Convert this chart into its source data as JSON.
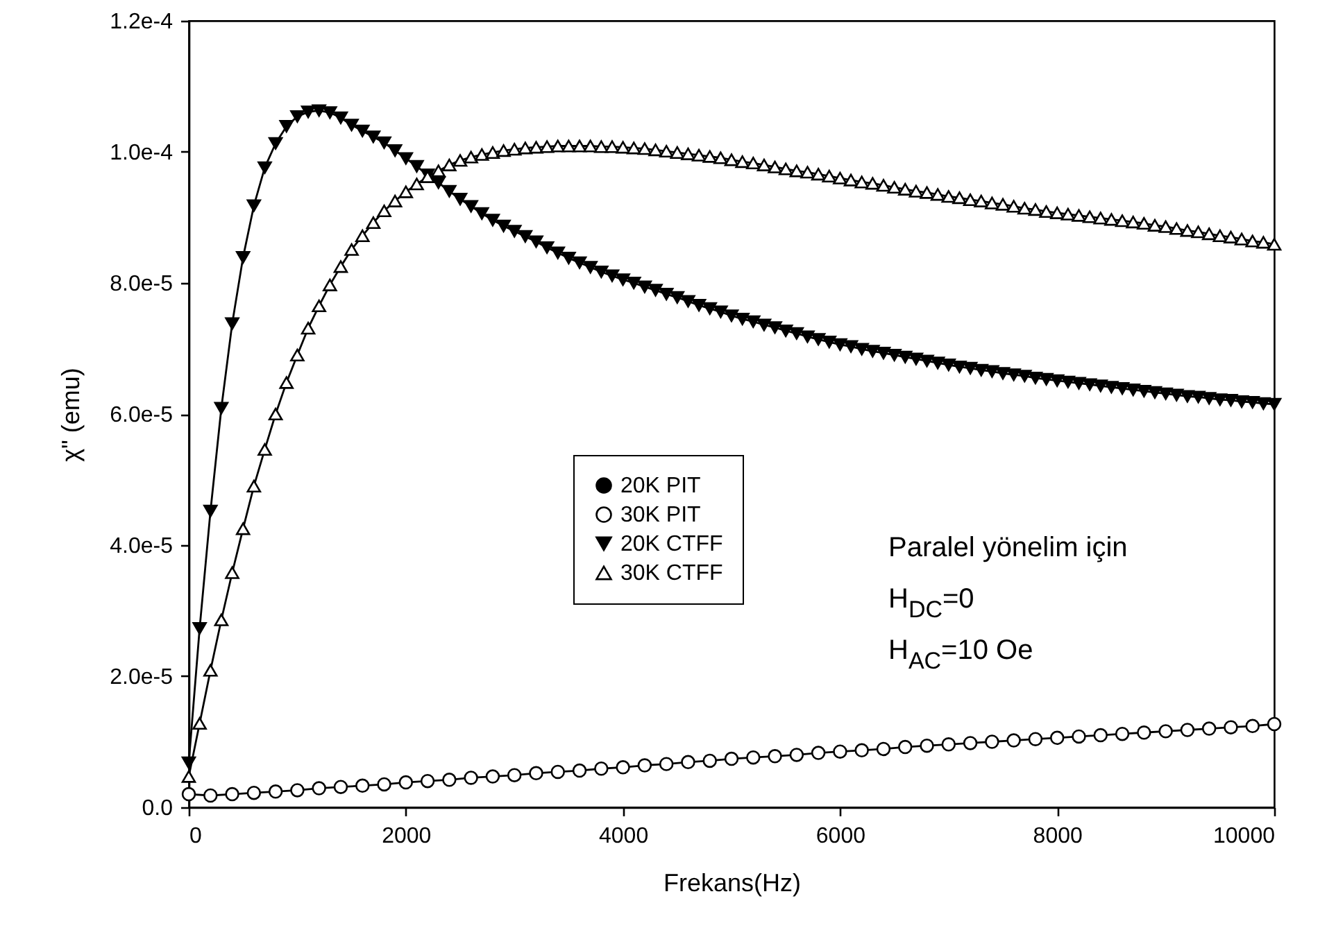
{
  "chart_data": {
    "type": "line",
    "xlabel": "Frekans(Hz)",
    "ylabel": "χ\" (emu)",
    "xlim": [
      0,
      10000
    ],
    "xticks": [
      0,
      2000,
      4000,
      6000,
      8000,
      10000
    ],
    "grid": false,
    "ylim": [
      0,
      0.00012
    ],
    "yticks": [
      {
        "value": 0,
        "label": "0.0"
      },
      {
        "value": 2e-05,
        "label": "2.0e-5"
      },
      {
        "value": 4e-05,
        "label": "4.0e-5"
      },
      {
        "value": 6e-05,
        "label": "6.0e-5"
      },
      {
        "value": 8e-05,
        "label": "8.0e-5"
      },
      {
        "value": 0.0001,
        "label": "1.0e-4"
      },
      {
        "value": 0.00012,
        "label": "1.2e-4"
      }
    ],
    "legend": "center left",
    "line_style": "solid",
    "annotations": [
      "Paralel yönelim için",
      "H$_{DC}$=0",
      "H$_{AC}$=10 Oe"
    ],
    "series": [
      {
        "name": "20K PIT",
        "color": "#000000",
        "marker": "circle"
      },
      {
        "name": "30K PIT",
        "color": "#ffffff",
        "marker": "circle",
        "x": [
          0,
          200,
          400,
          600,
          800,
          1000,
          1200,
          1400,
          1600,
          1800,
          2000,
          2200,
          2400,
          2600,
          2800,
          3000,
          3200,
          3400,
          3600,
          3800,
          4000,
          4200,
          4400,
          4600,
          4800,
          5000,
          5200,
          5400,
          5600,
          5800,
          6000,
          6200,
          6400,
          6600,
          6800,
          7000,
          7200,
          7400,
          7600,
          7800,
          8000,
          8200,
          8400,
          8600,
          8800,
          9000,
          9200,
          9400,
          9600,
          9800,
          10000
        ],
        "values": [
          2e-06,
          1.8e-06,
          2e-06,
          2.2e-06,
          2.4e-06,
          2.6e-06,
          2.9e-06,
          3.1e-06,
          3.3e-06,
          3.5e-06,
          3.8e-06,
          4e-06,
          4.2e-06,
          4.5e-06,
          4.7e-06,
          4.9e-06,
          5.2e-06,
          5.4e-06,
          5.6e-06,
          5.9e-06,
          6.1e-06,
          6.4e-06,
          6.6e-06,
          6.9e-06,
          7.1e-06,
          7.4e-06,
          7.6e-06,
          7.8e-06,
          8e-06,
          8.3e-06,
          8.5e-06,
          8.7e-06,
          8.9e-06,
          9.2e-06,
          9.4e-06,
          9.6e-06,
          9.8e-06,
          1e-05,
          1.02e-05,
          1.04e-05,
          1.06e-05,
          1.08e-05,
          1.1e-05,
          1.12e-05,
          1.14e-05,
          1.16e-05,
          1.18e-05,
          1.2e-05,
          1.22e-05,
          1.24e-05,
          1.27e-05
        ]
      },
      {
        "name": "20K CTFF",
        "color": "#000000",
        "marker": "triangle-down",
        "x": [
          0,
          100,
          200,
          300,
          400,
          500,
          600,
          700,
          800,
          900,
          1000,
          1100,
          1200,
          1300,
          1400,
          1500,
          1600,
          1700,
          1800,
          1900,
          2000,
          2100,
          2200,
          2300,
          2400,
          2500,
          2600,
          2700,
          2800,
          2900,
          3000,
          3100,
          3200,
          3300,
          3400,
          3500,
          3600,
          3700,
          3800,
          3900,
          4000,
          4100,
          4200,
          4300,
          4400,
          4500,
          4600,
          4700,
          4800,
          4900,
          5000,
          5100,
          5200,
          5300,
          5400,
          5500,
          5600,
          5700,
          5800,
          5900,
          6000,
          6100,
          6200,
          6300,
          6400,
          6500,
          6600,
          6700,
          6800,
          6900,
          7000,
          7100,
          7200,
          7300,
          7400,
          7500,
          7600,
          7700,
          7800,
          7900,
          8000,
          8100,
          8200,
          8300,
          8400,
          8500,
          8600,
          8700,
          8800,
          8900,
          9000,
          9100,
          9200,
          9300,
          9400,
          9500,
          9600,
          9700,
          9800,
          9900,
          10000
        ],
        "values": [
          6.8e-06,
          2.73e-05,
          4.52e-05,
          6.09e-05,
          7.38e-05,
          8.39e-05,
          9.18e-05,
          9.76e-05,
          0.0001013,
          0.0001039,
          0.0001054,
          0.0001061,
          0.0001063,
          0.000106,
          0.0001052,
          0.0001041,
          0.0001032,
          0.0001023,
          0.0001014,
          0.0001002,
          9.9e-05,
          9.78e-05,
          9.65e-05,
          9.53e-05,
          9.4e-05,
          9.28e-05,
          9.17e-05,
          9.06e-05,
          8.96e-05,
          8.87e-05,
          8.79e-05,
          8.71e-05,
          8.63e-05,
          8.54e-05,
          8.46e-05,
          8.38e-05,
          8.31e-05,
          8.24e-05,
          8.17e-05,
          8.11e-05,
          8.05e-05,
          8e-05,
          7.94e-05,
          7.89e-05,
          7.83e-05,
          7.78e-05,
          7.72e-05,
          7.66e-05,
          7.61e-05,
          7.56e-05,
          7.5e-05,
          7.45e-05,
          7.41e-05,
          7.36e-05,
          7.32e-05,
          7.27e-05,
          7.23e-05,
          7.18e-05,
          7.14e-05,
          7.1e-05,
          7.06e-05,
          7.03e-05,
          6.99e-05,
          6.96e-05,
          6.93e-05,
          6.9e-05,
          6.87e-05,
          6.84e-05,
          6.81e-05,
          6.78e-05,
          6.75e-05,
          6.72e-05,
          6.7e-05,
          6.67e-05,
          6.65e-05,
          6.62e-05,
          6.6e-05,
          6.58e-05,
          6.55e-05,
          6.53e-05,
          6.51e-05,
          6.49e-05,
          6.47e-05,
          6.45e-05,
          6.43e-05,
          6.41e-05,
          6.39e-05,
          6.37e-05,
          6.35e-05,
          6.33e-05,
          6.31e-05,
          6.29e-05,
          6.27e-05,
          6.26e-05,
          6.24e-05,
          6.22e-05,
          6.21e-05,
          6.19e-05,
          6.18e-05,
          6.16e-05,
          6.15e-05
        ]
      },
      {
        "name": "30K CTFF",
        "color": "#ffffff",
        "marker": "triangle",
        "x": [
          0,
          100,
          200,
          300,
          400,
          500,
          600,
          700,
          800,
          900,
          1000,
          1100,
          1200,
          1300,
          1400,
          1500,
          1600,
          1700,
          1800,
          1900,
          2000,
          2100,
          2200,
          2300,
          2400,
          2500,
          2600,
          2700,
          2800,
          2900,
          3000,
          3100,
          3200,
          3300,
          3400,
          3500,
          3600,
          3700,
          3800,
          3900,
          4000,
          4100,
          4200,
          4300,
          4400,
          4500,
          4600,
          4700,
          4800,
          4900,
          5000,
          5100,
          5200,
          5300,
          5400,
          5500,
          5600,
          5700,
          5800,
          5900,
          6000,
          6100,
          6200,
          6300,
          6400,
          6500,
          6600,
          6700,
          6800,
          6900,
          7000,
          7100,
          7200,
          7300,
          7400,
          7500,
          7600,
          7700,
          7800,
          7900,
          8000,
          8100,
          8200,
          8300,
          8400,
          8500,
          8600,
          8700,
          8800,
          8900,
          9000,
          9100,
          9200,
          9300,
          9400,
          9500,
          9600,
          9700,
          9800,
          9900,
          10000
        ],
        "values": [
          4.7e-06,
          1.28e-05,
          2.09e-05,
          2.86e-05,
          3.58e-05,
          4.25e-05,
          4.9e-05,
          5.46e-05,
          6e-05,
          6.48e-05,
          6.9e-05,
          7.31e-05,
          7.65e-05,
          7.97e-05,
          8.25e-05,
          8.51e-05,
          8.72e-05,
          8.92e-05,
          9.1e-05,
          9.25e-05,
          9.39e-05,
          9.51e-05,
          9.62e-05,
          9.71e-05,
          9.8e-05,
          9.87e-05,
          9.92e-05,
          9.96e-05,
          9.99e-05,
          0.0001002,
          0.0001004,
          0.0001006,
          0.0001007,
          0.0001008,
          0.0001009,
          0.0001009,
          0.0001009,
          0.0001009,
          0.0001008,
          0.0001008,
          0.0001007,
          0.0001006,
          0.0001005,
          0.0001003,
          0.0001001,
          9.99e-05,
          9.97e-05,
          9.95e-05,
          9.93e-05,
          9.91e-05,
          9.88e-05,
          9.85e-05,
          9.83e-05,
          9.8e-05,
          9.77e-05,
          9.74e-05,
          9.71e-05,
          9.69e-05,
          9.66e-05,
          9.63e-05,
          9.6e-05,
          9.57e-05,
          9.54e-05,
          9.52e-05,
          9.49e-05,
          9.46e-05,
          9.43e-05,
          9.4e-05,
          9.38e-05,
          9.35e-05,
          9.32e-05,
          9.3e-05,
          9.27e-05,
          9.25e-05,
          9.22e-05,
          9.2e-05,
          9.17e-05,
          9.14e-05,
          9.12e-05,
          9.09e-05,
          9.07e-05,
          9.05e-05,
          9.03e-05,
          9.01e-05,
          8.99e-05,
          8.97e-05,
          8.95e-05,
          8.93e-05,
          8.91e-05,
          8.88e-05,
          8.86e-05,
          8.83e-05,
          8.8e-05,
          8.78e-05,
          8.75e-05,
          8.72e-05,
          8.7e-05,
          8.67e-05,
          8.64e-05,
          8.62e-05,
          8.59e-05
        ]
      }
    ]
  }
}
